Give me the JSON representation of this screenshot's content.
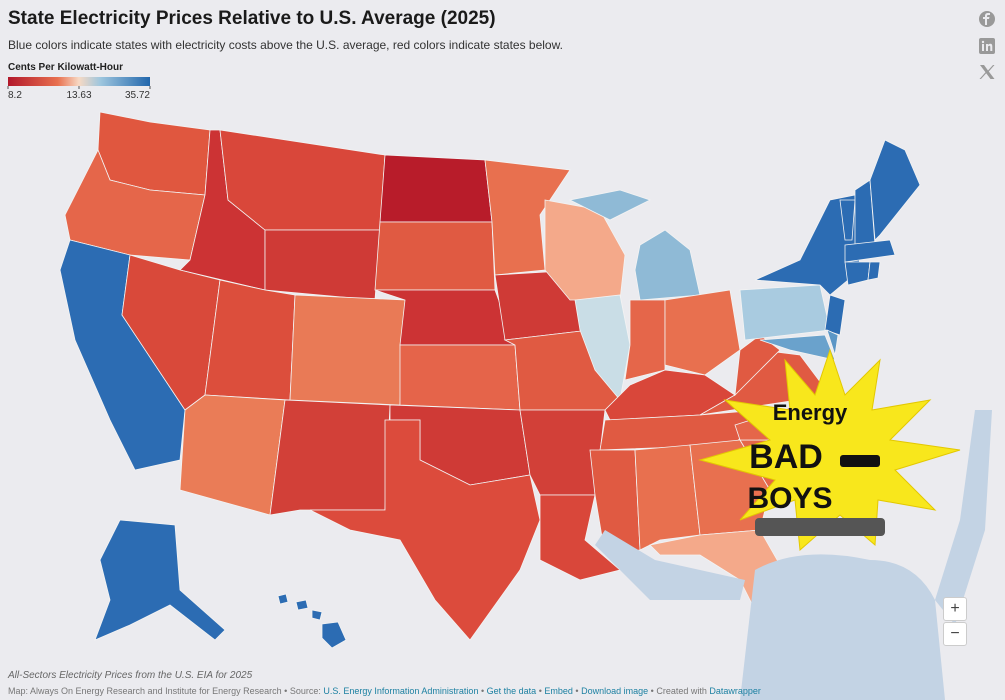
{
  "header": {
    "title": "State Electricity Prices Relative to U.S. Average (2025)",
    "subtitle": "Blue colors indicate states with electricity costs above the U.S. average, red colors indicate states below."
  },
  "legend": {
    "title": "Cents Per Kilowatt-Hour",
    "ticks": [
      8.2,
      13.63,
      35.72
    ]
  },
  "overlay": {
    "line1": "Energy",
    "line2": "BAD",
    "line3": "BOYS"
  },
  "zoom": {
    "in": "+",
    "out": "−"
  },
  "footer": {
    "caption": "All-Sectors Electricity Prices from the U.S. EIA for 2025",
    "credit": "Map: Always On Energy Research and Institute for Energy Research",
    "separator": "•",
    "source_label": "Source:",
    "source_link": "U.S. Energy Information Administration",
    "links": [
      "Get the data",
      "Embed",
      "Download image"
    ],
    "created_label": "Created with",
    "created_link": "Datawrapper"
  }
}
